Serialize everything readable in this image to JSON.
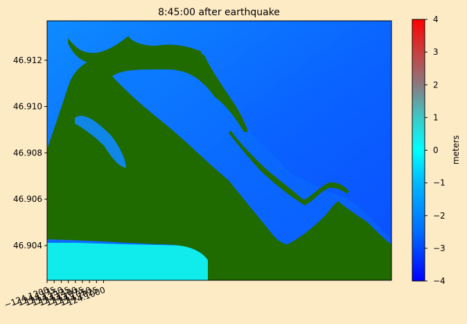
{
  "chart_data": {
    "type": "heatmap",
    "title": "8:45:00 after earthquake",
    "xlabel": "",
    "ylabel": "",
    "xlim": [
      -124.12,
      -123.998
    ],
    "ylim": [
      46.9025,
      46.9137
    ],
    "x_ticks": [
      {
        "value": -124.12,
        "label": "−124.1200"
      },
      {
        "value": -124.1175,
        "label": "−124.1175"
      },
      {
        "value": -124.115,
        "label": "−124.1150"
      },
      {
        "value": -124.1125,
        "label": "−124.1125"
      },
      {
        "value": -124.11,
        "label": "−124.1100"
      },
      {
        "value": -124.1075,
        "label": "−124.1075"
      },
      {
        "value": -124.105,
        "label": "−124.1050"
      },
      {
        "value": -124.1025,
        "label": "−124.1025"
      },
      {
        "value": -124.1,
        "label": "−124.1000"
      }
    ],
    "y_ticks": [
      {
        "value": 46.904,
        "label": "46.904"
      },
      {
        "value": 46.906,
        "label": "46.906"
      },
      {
        "value": 46.908,
        "label": "46.908"
      },
      {
        "value": 46.91,
        "label": "46.910"
      },
      {
        "value": 46.912,
        "label": "46.912"
      }
    ],
    "colorbar": {
      "label": "meters",
      "range": [
        -4,
        4
      ],
      "ticks": [
        {
          "value": 4,
          "label": "4"
        },
        {
          "value": 3,
          "label": "3"
        },
        {
          "value": 2,
          "label": "2"
        },
        {
          "value": 1,
          "label": "1"
        },
        {
          "value": 0,
          "label": "0"
        },
        {
          "value": -1,
          "label": "−1"
        },
        {
          "value": -2,
          "label": "−2"
        },
        {
          "value": -3,
          "label": "−3"
        },
        {
          "value": -4,
          "label": "−4"
        }
      ],
      "stops": [
        {
          "value": -4,
          "color": "#0000ff"
        },
        {
          "value": -2.5,
          "color": "#006cff"
        },
        {
          "value": -1,
          "color": "#00b8ff"
        },
        {
          "value": 0,
          "color": "#00ffff"
        },
        {
          "value": 1,
          "color": "#3cc8c8"
        },
        {
          "value": 2,
          "color": "#8a7a80"
        },
        {
          "value": 3,
          "color": "#c84040"
        },
        {
          "value": 4,
          "color": "#ff0000"
        }
      ]
    },
    "land_color": "#1f6b00",
    "grid": false,
    "legend": "none"
  },
  "colors": {
    "figure_background": "#fdebc6",
    "water_deep": "#0a4fff",
    "water_shallow": "#0e8bff",
    "shore_cyan": "#10ecec",
    "land": "#1f6b00"
  }
}
